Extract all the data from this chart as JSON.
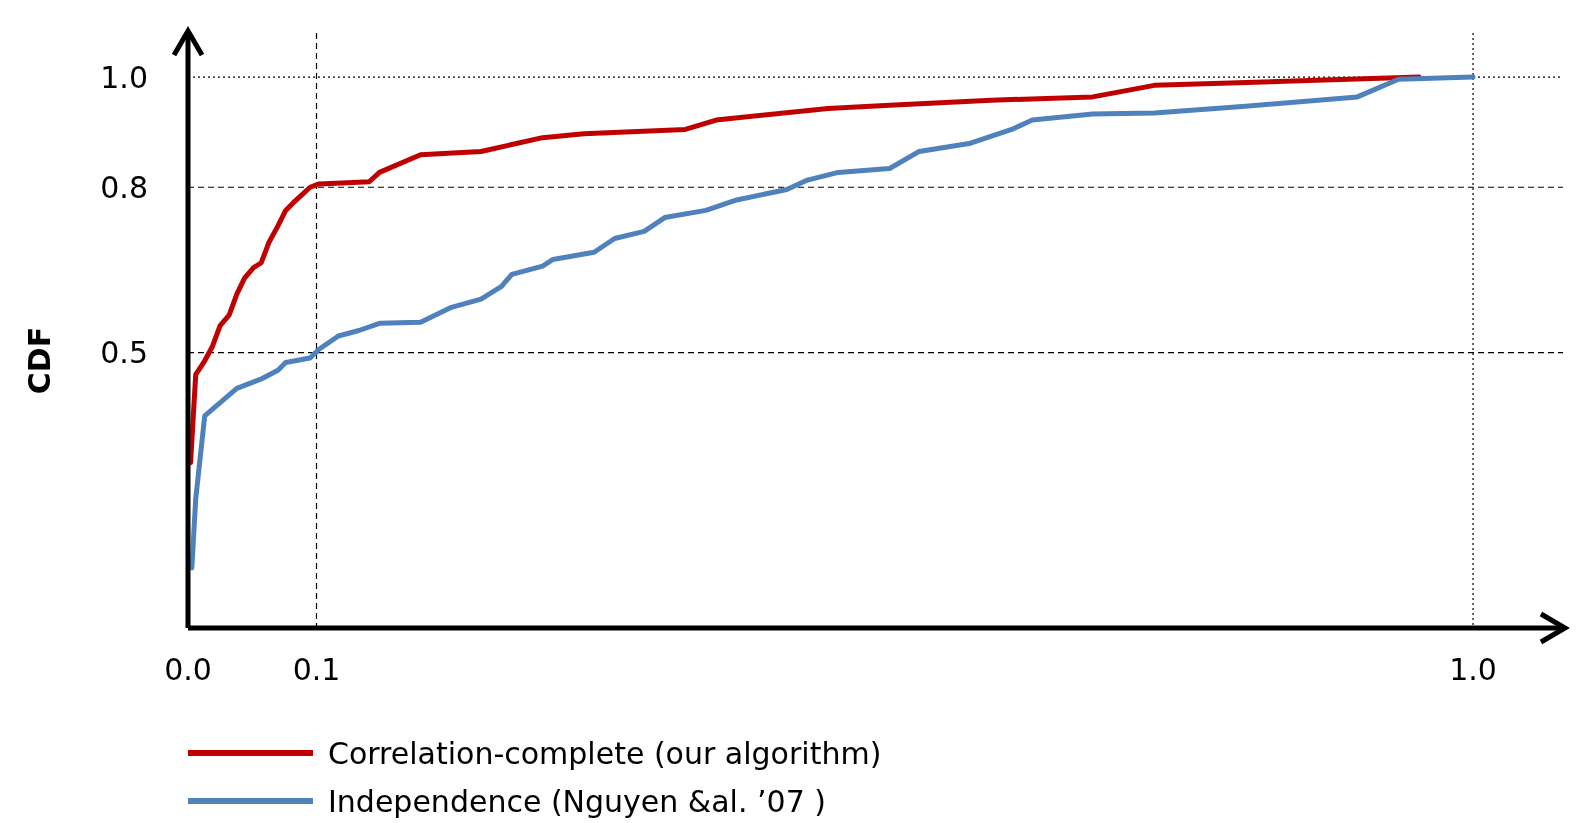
{
  "chart_data": {
    "type": "line",
    "ylabel": "CDF",
    "xlim": [
      0,
      1.07
    ],
    "ylim": [
      0,
      1.08
    ],
    "xticks": [
      {
        "value": 0,
        "label": "0.0"
      },
      0.1,
      {
        "value": 1,
        "label": "1.0"
      }
    ],
    "yticks": [
      0.5,
      0.8,
      {
        "value": 1,
        "label": "1.0"
      }
    ],
    "grid": false,
    "legend": "bottom",
    "marker": "none",
    "line_style": "solid",
    "ref_lines": [
      {
        "axis": "y",
        "value": 0.8,
        "color": "#000000",
        "line_style": "dashed"
      },
      {
        "axis": "y",
        "value": 0.5,
        "color": "#000000",
        "line_style": "dashed"
      },
      {
        "axis": "x",
        "value": 0.1,
        "color": "#000000",
        "line_style": "dashed"
      },
      {
        "axis": "y",
        "value": 1,
        "color": "#000000",
        "line_style": "dotted"
      },
      {
        "axis": "x",
        "value": 1,
        "color": "#000000",
        "line_style": "dotted"
      }
    ],
    "series": [
      {
        "name": "Correlation-complete (our algorithm)",
        "color": "#c00000",
        "x": [
          0.002,
          0.006,
          0.013,
          0.019,
          0.025,
          0.032,
          0.038,
          0.044,
          0.051,
          0.057,
          0.063,
          0.07,
          0.076,
          0.082,
          0.089,
          0.095,
          0.102,
          0.141,
          0.149,
          0.181,
          0.228,
          0.276,
          0.308,
          0.387,
          0.411,
          0.498,
          0.546,
          0.625,
          0.704,
          0.752,
          0.958
        ],
        "values": [
          0.3,
          0.46,
          0.485,
          0.511,
          0.549,
          0.568,
          0.606,
          0.635,
          0.654,
          0.663,
          0.7,
          0.73,
          0.758,
          0.772,
          0.787,
          0.8,
          0.806,
          0.81,
          0.827,
          0.859,
          0.865,
          0.89,
          0.897,
          0.905,
          0.922,
          0.943,
          0.949,
          0.958,
          0.964,
          0.985,
          1.0
        ]
      },
      {
        "name": "Independence (Nguyen &al. ’07 )",
        "color": "#4f81bd",
        "x": [
          0.003,
          0.006,
          0.013,
          0.038,
          0.057,
          0.07,
          0.076,
          0.095,
          0.102,
          0.117,
          0.133,
          0.149,
          0.181,
          0.205,
          0.228,
          0.244,
          0.252,
          0.276,
          0.284,
          0.316,
          0.332,
          0.355,
          0.371,
          0.403,
          0.427,
          0.466,
          0.482,
          0.506,
          0.546,
          0.569,
          0.609,
          0.641,
          0.657,
          0.704,
          0.752,
          0.823,
          0.91,
          0.942,
          1.0
        ],
        "values": [
          0.109,
          0.234,
          0.385,
          0.435,
          0.452,
          0.468,
          0.482,
          0.49,
          0.506,
          0.53,
          0.54,
          0.553,
          0.555,
          0.582,
          0.597,
          0.62,
          0.642,
          0.657,
          0.669,
          0.682,
          0.707,
          0.72,
          0.745,
          0.758,
          0.777,
          0.796,
          0.813,
          0.827,
          0.834,
          0.865,
          0.88,
          0.905,
          0.922,
          0.933,
          0.935,
          0.947,
          0.964,
          0.996,
          1.0
        ]
      }
    ]
  }
}
